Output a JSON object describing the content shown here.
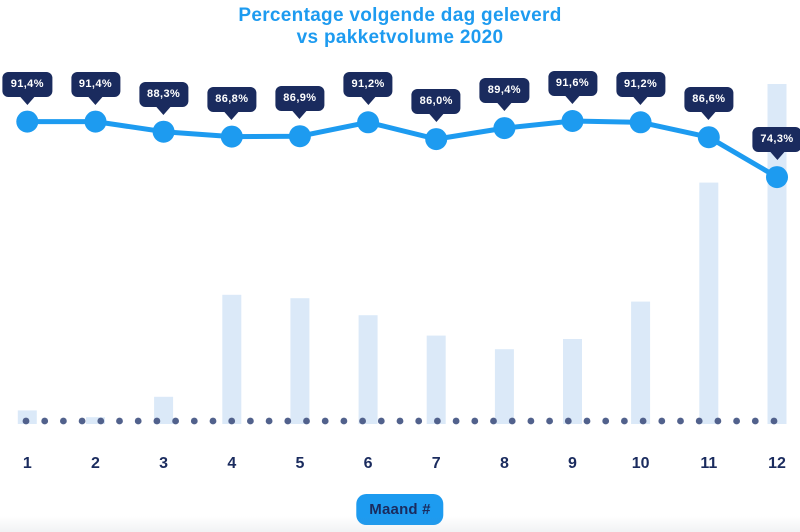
{
  "page": {
    "background": "#ffffff"
  },
  "chart": {
    "title_line1": "Percentage volgende dag geleverd",
    "title_line2": "vs pakketvolume 2020",
    "x_axis_button": "Maand #",
    "colors": {
      "accent_blue": "#1d9bf0",
      "navy": "#1a2b5e",
      "bar_fill": "#dbe9f8",
      "baseline_dot": "#51618c",
      "badge_text": "#ffffff"
    }
  },
  "chart_data": [
    {
      "type": "line",
      "name": "Percentage volgende dag geleverd",
      "categories": [
        "1",
        "2",
        "3",
        "4",
        "5",
        "6",
        "7",
        "8",
        "9",
        "10",
        "11",
        "12"
      ],
      "values": [
        91.4,
        91.4,
        88.3,
        86.8,
        86.9,
        91.2,
        86.0,
        89.4,
        91.6,
        91.2,
        86.6,
        74.3
      ],
      "point_labels": [
        "91,4%",
        "91,4%",
        "88,3%",
        "86,8%",
        "86,9%",
        "91,2%",
        "86,0%",
        "89,4%",
        "91,6%",
        "91,2%",
        "86,6%",
        "74,3%"
      ],
      "title": "Percentage volgende dag geleverd vs pakketvolume 2020",
      "xlabel": "Maand #",
      "ylabel": "",
      "ylim": [
        70,
        95
      ],
      "grid": false,
      "legend": false,
      "style": {
        "marker": "filled-circle",
        "data_labels": "navy-speech-bubble"
      }
    },
    {
      "type": "bar",
      "name": "pakketvolume 2020",
      "categories": [
        "1",
        "2",
        "3",
        "4",
        "5",
        "6",
        "7",
        "8",
        "9",
        "10",
        "11",
        "12"
      ],
      "values": [
        4,
        2,
        8,
        38,
        37,
        32,
        26,
        22,
        25,
        36,
        71,
        100
      ],
      "values_unit": "relative volume index (y-axis unlabeled, tallest month = 100)",
      "xlabel": "Maand #",
      "ylabel": "",
      "grid": false,
      "legend": false,
      "style": {
        "baseline": "dotted"
      }
    }
  ]
}
